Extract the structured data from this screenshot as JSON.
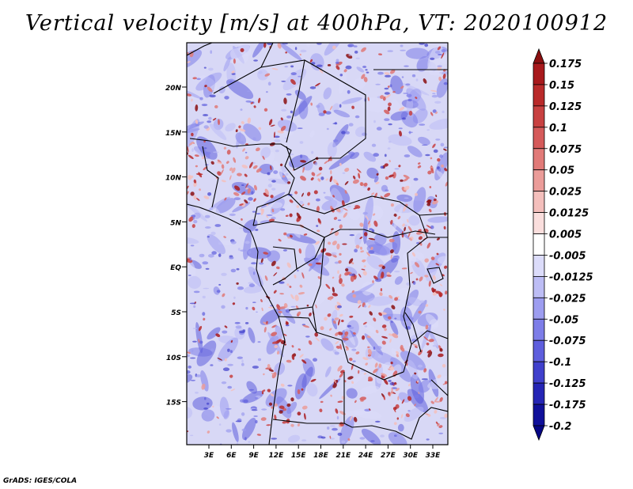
{
  "title": "Vertical velocity [m/s] at 400hPa, VT: 2020100912",
  "credit": "GrADS: IGES/COLA",
  "map": {
    "lat_labels": [
      "20N",
      "15N",
      "10N",
      "5N",
      "EQ",
      "5S",
      "10S",
      "15S"
    ],
    "lon_labels": [
      "3E",
      "6E",
      "9E",
      "12E",
      "15E",
      "18E",
      "21E",
      "24E",
      "27E",
      "30E",
      "33E"
    ]
  },
  "colorbar": {
    "labels": [
      "0.175",
      "0.15",
      "0.125",
      "0.1",
      "0.075",
      "0.05",
      "0.025",
      "0.0125",
      "0.005",
      "-0.005",
      "-0.0125",
      "-0.025",
      "-0.05",
      "-0.075",
      "-0.1",
      "-0.125",
      "-0.175",
      "-0.2"
    ],
    "colors": [
      "#8b0f10",
      "#a8191c",
      "#b92a2a",
      "#c84141",
      "#d55a5a",
      "#e17a78",
      "#eb9c99",
      "#f4bfbc",
      "#fadedd",
      "#ffffff",
      "#dcdcfa",
      "#bdbdf5",
      "#9d9df0",
      "#7d7de8",
      "#5e5edd",
      "#4040cc",
      "#2525b5",
      "#10109a",
      "#060685"
    ]
  },
  "colors": {
    "positive": "#c84141",
    "negative": "#5e5edd",
    "background": "#d8d8f6"
  }
}
